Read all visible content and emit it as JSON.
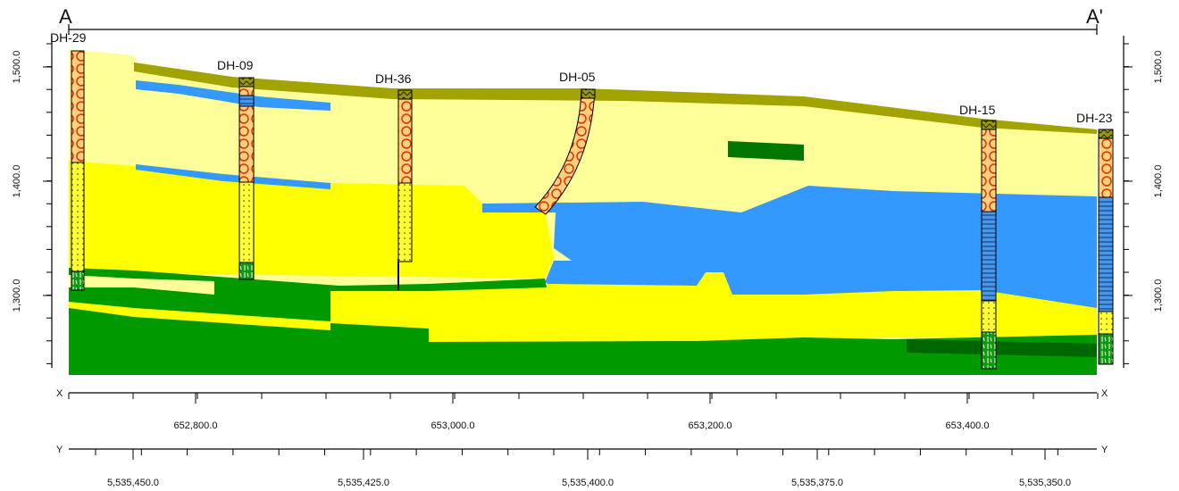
{
  "section": {
    "start": "A",
    "end": "A'"
  },
  "drillholes": [
    {
      "label": "DH-29"
    },
    {
      "label": "DH-09"
    },
    {
      "label": "DH-36"
    },
    {
      "label": "DH-05"
    },
    {
      "label": "DH-15"
    },
    {
      "label": "DH-23"
    }
  ],
  "elevation_axis": {
    "labels": [
      "1,500.0",
      "1,400.0",
      "1,300.0"
    ]
  },
  "x_axis": {
    "letter": "X",
    "labels": [
      "652,800.0",
      "653,000.0",
      "653,200.0",
      "653,400.0"
    ]
  },
  "y_axis": {
    "letter": "Y",
    "labels": [
      "5,535,450.0",
      "5,535,425.0",
      "5,535,400.0",
      "5,535,375.0",
      "5,535,350.0"
    ]
  }
}
